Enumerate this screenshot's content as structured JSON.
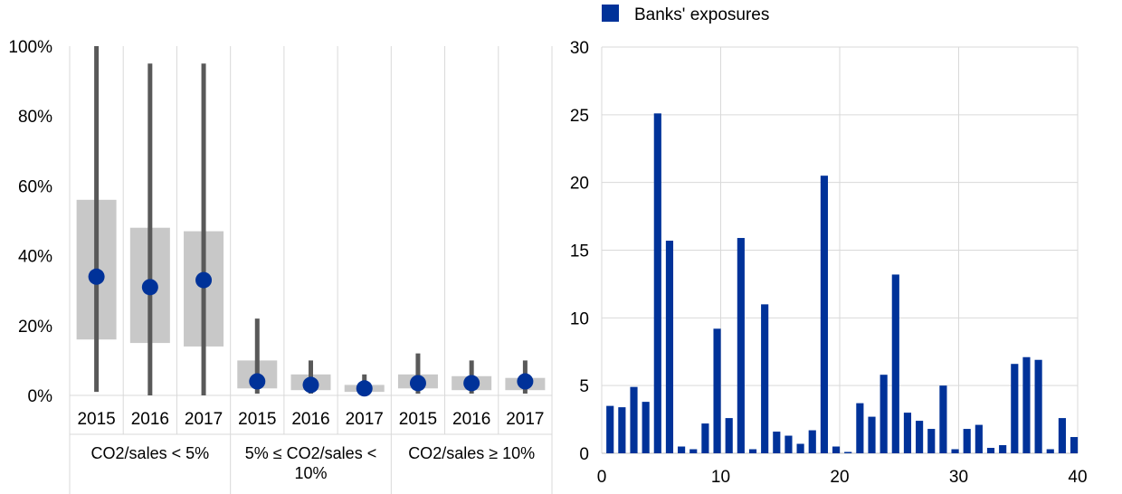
{
  "colors": {
    "accent": "#003299",
    "box": "#c8c8c8",
    "whisker": "#595959",
    "grid": "#d9d9d9"
  },
  "chart_data": [
    {
      "type": "box",
      "ylim": [
        0,
        100
      ],
      "yticks": [
        "0%",
        "20%",
        "40%",
        "60%",
        "80%",
        "100%"
      ],
      "groups": [
        {
          "label": "CO2/sales < 5%",
          "items": [
            {
              "year": "2015",
              "whisker_low": 1,
              "q1": 16,
              "q3": 56,
              "whisker_high": 100,
              "median": 34
            },
            {
              "year": "2016",
              "whisker_low": 0,
              "q1": 15,
              "q3": 48,
              "whisker_high": 95,
              "median": 31
            },
            {
              "year": "2017",
              "whisker_low": 0,
              "q1": 14,
              "q3": 47,
              "whisker_high": 95,
              "median": 33
            }
          ]
        },
        {
          "label": "5% ≤ CO2/sales < 10%",
          "label_lines": [
            "5% ≤ CO2/sales <",
            "10%"
          ],
          "items": [
            {
              "year": "2015",
              "whisker_low": 0.5,
              "q1": 2,
              "q3": 10,
              "whisker_high": 22,
              "median": 4
            },
            {
              "year": "2016",
              "whisker_low": 0.5,
              "q1": 1.5,
              "q3": 6,
              "whisker_high": 10,
              "median": 3
            },
            {
              "year": "2017",
              "whisker_low": 0.3,
              "q1": 1,
              "q3": 3,
              "whisker_high": 6,
              "median": 2
            }
          ]
        },
        {
          "label": "CO2/sales ≥ 10%",
          "items": [
            {
              "year": "2015",
              "whisker_low": 0.5,
              "q1": 2,
              "q3": 6,
              "whisker_high": 12,
              "median": 3.5
            },
            {
              "year": "2016",
              "whisker_low": 0.5,
              "q1": 1.5,
              "q3": 5.5,
              "whisker_high": 10,
              "median": 3.5
            },
            {
              "year": "2017",
              "whisker_low": 0.5,
              "q1": 1.5,
              "q3": 5,
              "whisker_high": 10,
              "median": 4
            }
          ]
        }
      ]
    },
    {
      "type": "bar",
      "xlim": [
        0,
        40
      ],
      "ylim": [
        0,
        30
      ],
      "xticks": [
        0,
        10,
        20,
        30,
        40
      ],
      "yticks": [
        0,
        5,
        10,
        15,
        20,
        25,
        30
      ],
      "series": [
        {
          "name": "Banks' exposures",
          "points": [
            [
              1,
              3.5
            ],
            [
              2,
              3.4
            ],
            [
              3,
              4.9
            ],
            [
              4,
              3.8
            ],
            [
              5,
              25.1
            ],
            [
              6,
              15.7
            ],
            [
              7,
              0.5
            ],
            [
              8,
              0.3
            ],
            [
              9,
              2.2
            ],
            [
              10,
              9.2
            ],
            [
              11,
              2.6
            ],
            [
              12,
              15.9
            ],
            [
              13,
              0.3
            ],
            [
              14,
              11.0
            ],
            [
              15,
              1.6
            ],
            [
              16,
              1.3
            ],
            [
              17,
              0.7
            ],
            [
              18,
              1.7
            ],
            [
              19,
              20.5
            ],
            [
              20,
              0.5
            ],
            [
              21,
              0.1
            ],
            [
              22,
              3.7
            ],
            [
              23,
              2.7
            ],
            [
              24,
              5.8
            ],
            [
              25,
              13.2
            ],
            [
              26,
              3.0
            ],
            [
              27,
              2.4
            ],
            [
              28,
              1.8
            ],
            [
              29,
              5.0
            ],
            [
              30,
              0.3
            ],
            [
              31,
              1.8
            ],
            [
              32,
              2.1
            ],
            [
              33,
              0.4
            ],
            [
              34,
              0.6
            ],
            [
              35,
              6.6
            ],
            [
              36,
              7.1
            ],
            [
              37,
              6.9
            ],
            [
              38,
              0.3
            ],
            [
              39,
              2.6
            ],
            [
              40,
              1.2
            ]
          ]
        }
      ]
    }
  ]
}
